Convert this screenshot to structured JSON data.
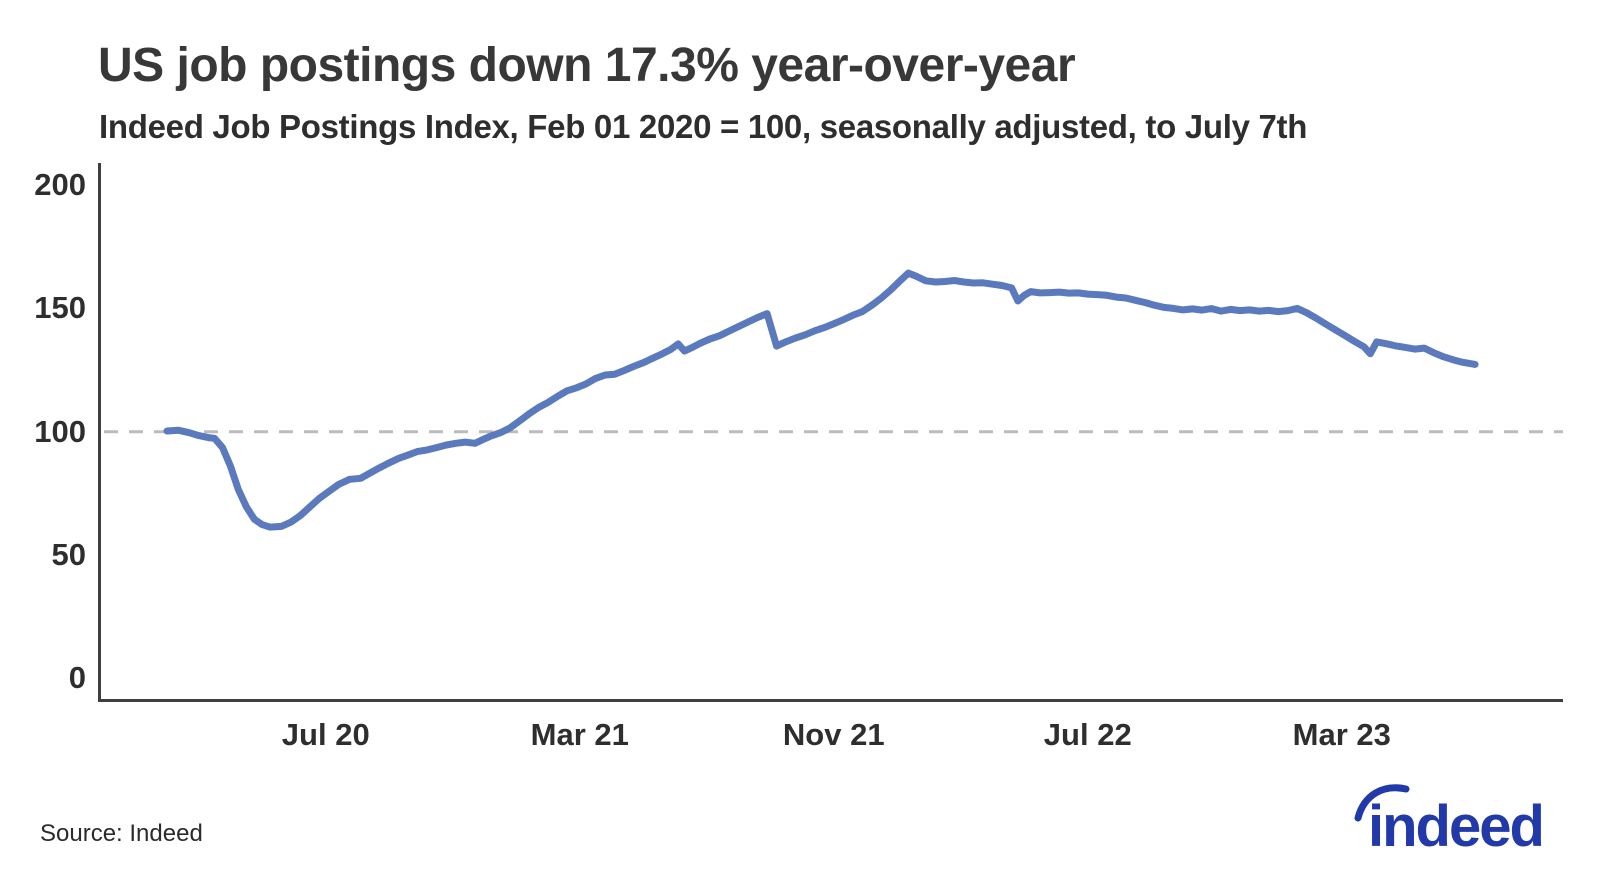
{
  "header": {
    "title": "US job postings down 17.3% year-over-year",
    "subtitle": "Indeed Job Postings Index, Feb 01 2020 = 100, seasonally adjusted, to July 7th"
  },
  "footer": {
    "source": "Source: Indeed",
    "logo_text": "indeed",
    "logo_color": "#2139a9"
  },
  "colors": {
    "line": "#5a7abd",
    "reference_dash": "#bcbcbc",
    "axis": "#3f3f3f",
    "text": "#2e2e2e"
  },
  "chart_data": {
    "type": "line",
    "title": "US job postings down 17.3% year-over-year",
    "subtitle": "Indeed Job Postings Index, Feb 01 2020 = 100, seasonally adjusted, to July 7th",
    "series_name": "Indeed Job Postings Index, US, seasonally adjusted",
    "index_base": "Feb 01 2020 = 100",
    "last_value": 127.3,
    "yoy_change_pct": -17.3,
    "grid": "reference line at 100 only, dashed",
    "legend": "none",
    "x_axis": {
      "start_date": "2020-02-01",
      "end_date": "2023-07-07",
      "unit": "months_from_2020-02-01",
      "ticks": [
        {
          "label": "Jul 20",
          "m": 5
        },
        {
          "label": "Mar 21",
          "m": 13
        },
        {
          "label": "Nov 21",
          "m": 21
        },
        {
          "label": "Jul 22",
          "m": 29
        },
        {
          "label": "Mar 23",
          "m": 37
        }
      ]
    },
    "y_axis": {
      "min": 0,
      "max": 208,
      "ticks": [
        200,
        150,
        100,
        50,
        0
      ],
      "reference_line": 100
    },
    "points": [
      [
        0.0,
        100.3
      ],
      [
        0.35,
        100.6
      ],
      [
        0.7,
        99.6
      ],
      [
        1.0,
        98.4
      ],
      [
        1.3,
        97.6
      ],
      [
        1.5,
        97.3
      ],
      [
        1.75,
        93.5
      ],
      [
        2.0,
        86.0
      ],
      [
        2.25,
        76.5
      ],
      [
        2.5,
        69.5
      ],
      [
        2.75,
        64.5
      ],
      [
        3.0,
        62.3
      ],
      [
        3.25,
        61.3
      ],
      [
        3.6,
        61.6
      ],
      [
        3.9,
        63.3
      ],
      [
        4.2,
        66.0
      ],
      [
        4.5,
        69.5
      ],
      [
        4.8,
        73.0
      ],
      [
        5.1,
        75.8
      ],
      [
        5.4,
        78.6
      ],
      [
        5.75,
        80.7
      ],
      [
        6.1,
        81.1
      ],
      [
        6.4,
        83.3
      ],
      [
        6.7,
        85.4
      ],
      [
        7.0,
        87.4
      ],
      [
        7.3,
        89.2
      ],
      [
        7.6,
        90.6
      ],
      [
        7.9,
        92.0
      ],
      [
        8.2,
        92.6
      ],
      [
        8.5,
        93.6
      ],
      [
        8.8,
        94.6
      ],
      [
        9.1,
        95.3
      ],
      [
        9.4,
        95.8
      ],
      [
        9.7,
        95.3
      ],
      [
        9.95,
        96.8
      ],
      [
        10.2,
        98.2
      ],
      [
        10.5,
        99.6
      ],
      [
        10.8,
        101.5
      ],
      [
        11.1,
        104.3
      ],
      [
        11.4,
        107.2
      ],
      [
        11.7,
        109.8
      ],
      [
        12.0,
        111.9
      ],
      [
        12.3,
        114.3
      ],
      [
        12.6,
        116.6
      ],
      [
        12.9,
        117.8
      ],
      [
        13.2,
        119.4
      ],
      [
        13.5,
        121.6
      ],
      [
        13.8,
        123.0
      ],
      [
        14.1,
        123.3
      ],
      [
        14.4,
        124.8
      ],
      [
        14.7,
        126.5
      ],
      [
        15.0,
        128.0
      ],
      [
        15.3,
        129.8
      ],
      [
        15.6,
        131.6
      ],
      [
        15.85,
        133.2
      ],
      [
        16.1,
        135.6
      ],
      [
        16.3,
        132.7
      ],
      [
        16.5,
        133.9
      ],
      [
        16.8,
        135.9
      ],
      [
        17.1,
        137.6
      ],
      [
        17.4,
        138.9
      ],
      [
        17.7,
        140.8
      ],
      [
        18.0,
        142.6
      ],
      [
        18.3,
        144.5
      ],
      [
        18.6,
        146.3
      ],
      [
        18.9,
        147.9
      ],
      [
        19.2,
        134.7
      ],
      [
        19.2,
        134.7
      ],
      [
        19.5,
        136.5
      ],
      [
        19.8,
        138.0
      ],
      [
        20.1,
        139.3
      ],
      [
        20.4,
        140.9
      ],
      [
        20.7,
        142.2
      ],
      [
        21.0,
        143.8
      ],
      [
        21.3,
        145.4
      ],
      [
        21.6,
        147.2
      ],
      [
        21.9,
        148.7
      ],
      [
        22.2,
        151.3
      ],
      [
        22.5,
        154.2
      ],
      [
        22.8,
        157.6
      ],
      [
        23.1,
        161.3
      ],
      [
        23.35,
        164.3
      ],
      [
        23.6,
        163.0
      ],
      [
        23.9,
        161.2
      ],
      [
        24.2,
        160.7
      ],
      [
        24.5,
        160.9
      ],
      [
        24.8,
        161.3
      ],
      [
        25.1,
        160.7
      ],
      [
        25.4,
        160.3
      ],
      [
        25.7,
        160.4
      ],
      [
        26.0,
        159.8
      ],
      [
        26.3,
        159.3
      ],
      [
        26.6,
        158.3
      ],
      [
        26.8,
        153.0
      ],
      [
        27.0,
        155.3
      ],
      [
        27.2,
        156.8
      ],
      [
        27.5,
        156.3
      ],
      [
        27.8,
        156.4
      ],
      [
        28.1,
        156.6
      ],
      [
        28.4,
        156.2
      ],
      [
        28.7,
        156.3
      ],
      [
        29.0,
        155.8
      ],
      [
        29.3,
        155.6
      ],
      [
        29.6,
        155.3
      ],
      [
        29.9,
        154.6
      ],
      [
        30.2,
        154.2
      ],
      [
        30.5,
        153.3
      ],
      [
        30.8,
        152.4
      ],
      [
        31.1,
        151.3
      ],
      [
        31.4,
        150.4
      ],
      [
        31.7,
        150.0
      ],
      [
        32.0,
        149.4
      ],
      [
        32.3,
        149.8
      ],
      [
        32.6,
        149.3
      ],
      [
        32.9,
        149.9
      ],
      [
        33.2,
        148.9
      ],
      [
        33.5,
        149.6
      ],
      [
        33.8,
        149.1
      ],
      [
        34.1,
        149.4
      ],
      [
        34.4,
        148.9
      ],
      [
        34.7,
        149.2
      ],
      [
        35.0,
        148.7
      ],
      [
        35.3,
        149.1
      ],
      [
        35.6,
        150.0
      ],
      [
        35.9,
        148.2
      ],
      [
        36.2,
        146.0
      ],
      [
        36.5,
        143.6
      ],
      [
        36.8,
        141.3
      ],
      [
        37.1,
        139.0
      ],
      [
        37.4,
        136.6
      ],
      [
        37.7,
        134.4
      ],
      [
        37.9,
        131.6
      ],
      [
        38.1,
        136.4
      ],
      [
        38.4,
        135.7
      ],
      [
        38.7,
        134.8
      ],
      [
        39.0,
        134.2
      ],
      [
        39.3,
        133.5
      ],
      [
        39.6,
        133.9
      ],
      [
        39.9,
        132.0
      ],
      [
        40.2,
        130.4
      ],
      [
        40.5,
        129.2
      ],
      [
        40.8,
        128.2
      ],
      [
        41.2,
        127.3
      ]
    ]
  }
}
